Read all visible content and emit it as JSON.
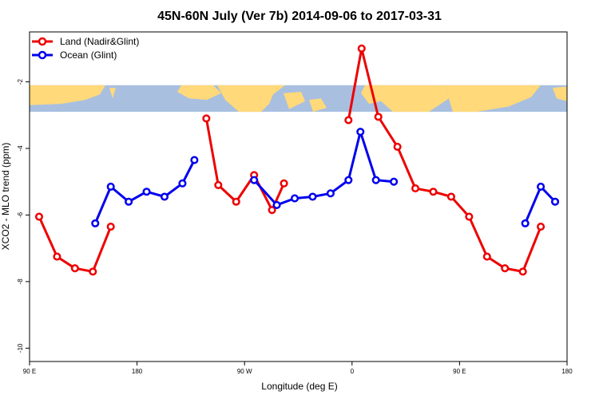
{
  "chart_data": {
    "type": "line",
    "title": "45N-60N July (Ver 7b)   2014-09-06 to 2017-03-31",
    "xlabel": "Longitude (deg E)",
    "ylabel": "XCO2 - MLO trend (ppm)",
    "xlim": [
      90,
      540
    ],
    "ylim": [
      -10.4,
      -0.5
    ],
    "x_ticks": [
      {
        "value": 90,
        "label": "90 E"
      },
      {
        "value": 180,
        "label": "180"
      },
      {
        "value": 270,
        "label": "90 W"
      },
      {
        "value": 360,
        "label": "0"
      },
      {
        "value": 450,
        "label": "90 E"
      },
      {
        "value": 540,
        "label": "180"
      }
    ],
    "y_ticks": [
      {
        "value": -2,
        "label": "-2"
      },
      {
        "value": -4,
        "label": "-4"
      },
      {
        "value": -6,
        "label": "-6"
      },
      {
        "value": -8,
        "label": "-8"
      },
      {
        "value": -10,
        "label": "-10"
      }
    ],
    "map_band": {
      "y_top": -2.1,
      "y_bottom": -2.9,
      "ocean_color": "#a8bfe0",
      "land_color": "#ffd97a"
    },
    "legend_position": "top-left",
    "series": [
      {
        "name": "Land (Nadir&Glint)",
        "color": "#ee0000",
        "segments": [
          [
            [
              98,
              -6.05
            ],
            [
              113,
              -7.25
            ],
            [
              128,
              -7.6
            ],
            [
              143,
              -7.7
            ],
            [
              158,
              -6.35
            ]
          ],
          [
            [
              238,
              -3.1
            ],
            [
              248,
              -5.1
            ],
            [
              263,
              -5.6
            ],
            [
              278,
              -4.8
            ],
            [
              293,
              -5.85
            ],
            [
              303,
              -5.05
            ]
          ],
          [
            [
              357,
              -3.15
            ],
            [
              368,
              -1.0
            ],
            [
              382,
              -3.05
            ],
            [
              398,
              -3.95
            ],
            [
              413,
              -5.2
            ],
            [
              428,
              -5.3
            ],
            [
              443,
              -5.45
            ],
            [
              458,
              -6.05
            ],
            [
              473,
              -7.25
            ],
            [
              488,
              -7.6
            ],
            [
              503,
              -7.7
            ],
            [
              518,
              -6.35
            ]
          ]
        ]
      },
      {
        "name": "Ocean (Glint)",
        "color": "#0000ee",
        "segments": [
          [
            [
              145,
              -6.25
            ],
            [
              158,
              -5.15
            ],
            [
              173,
              -5.6
            ],
            [
              188,
              -5.3
            ],
            [
              203,
              -5.45
            ],
            [
              218,
              -5.05
            ],
            [
              228,
              -4.35
            ]
          ],
          [
            [
              278,
              -4.95
            ],
            [
              297,
              -5.7
            ],
            [
              312,
              -5.5
            ],
            [
              327,
              -5.45
            ],
            [
              342,
              -5.35
            ],
            [
              357,
              -4.95
            ],
            [
              367,
              -3.5
            ],
            [
              380,
              -4.95
            ],
            [
              395,
              -5.0
            ]
          ],
          [
            [
              505,
              -6.25
            ],
            [
              518,
              -5.15
            ],
            [
              530,
              -5.6
            ]
          ]
        ]
      }
    ]
  }
}
